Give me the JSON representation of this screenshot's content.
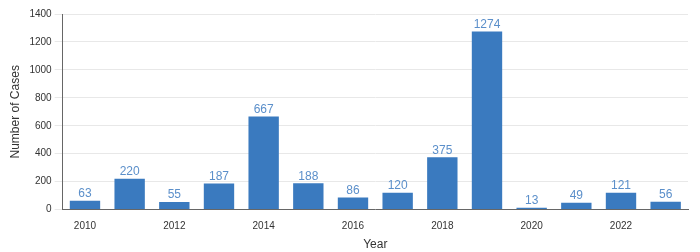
{
  "chart_data": {
    "type": "bar",
    "categories": [
      "2010",
      null,
      "2012",
      null,
      "2014",
      null,
      "2016",
      null,
      "2018",
      null,
      "2020",
      null,
      "2022",
      null
    ],
    "values": [
      63,
      220,
      55,
      187,
      667,
      188,
      86,
      120,
      375,
      1274,
      13,
      49,
      121,
      56
    ],
    "color": "#3a7abf",
    "x_label": "Year",
    "y_label": "Number of Cases",
    "ylim": [
      0,
      1400
    ],
    "yticks": [
      0,
      200,
      400,
      600,
      800,
      1000,
      1200,
      1400
    ],
    "grid": true,
    "data_labels": true
  }
}
